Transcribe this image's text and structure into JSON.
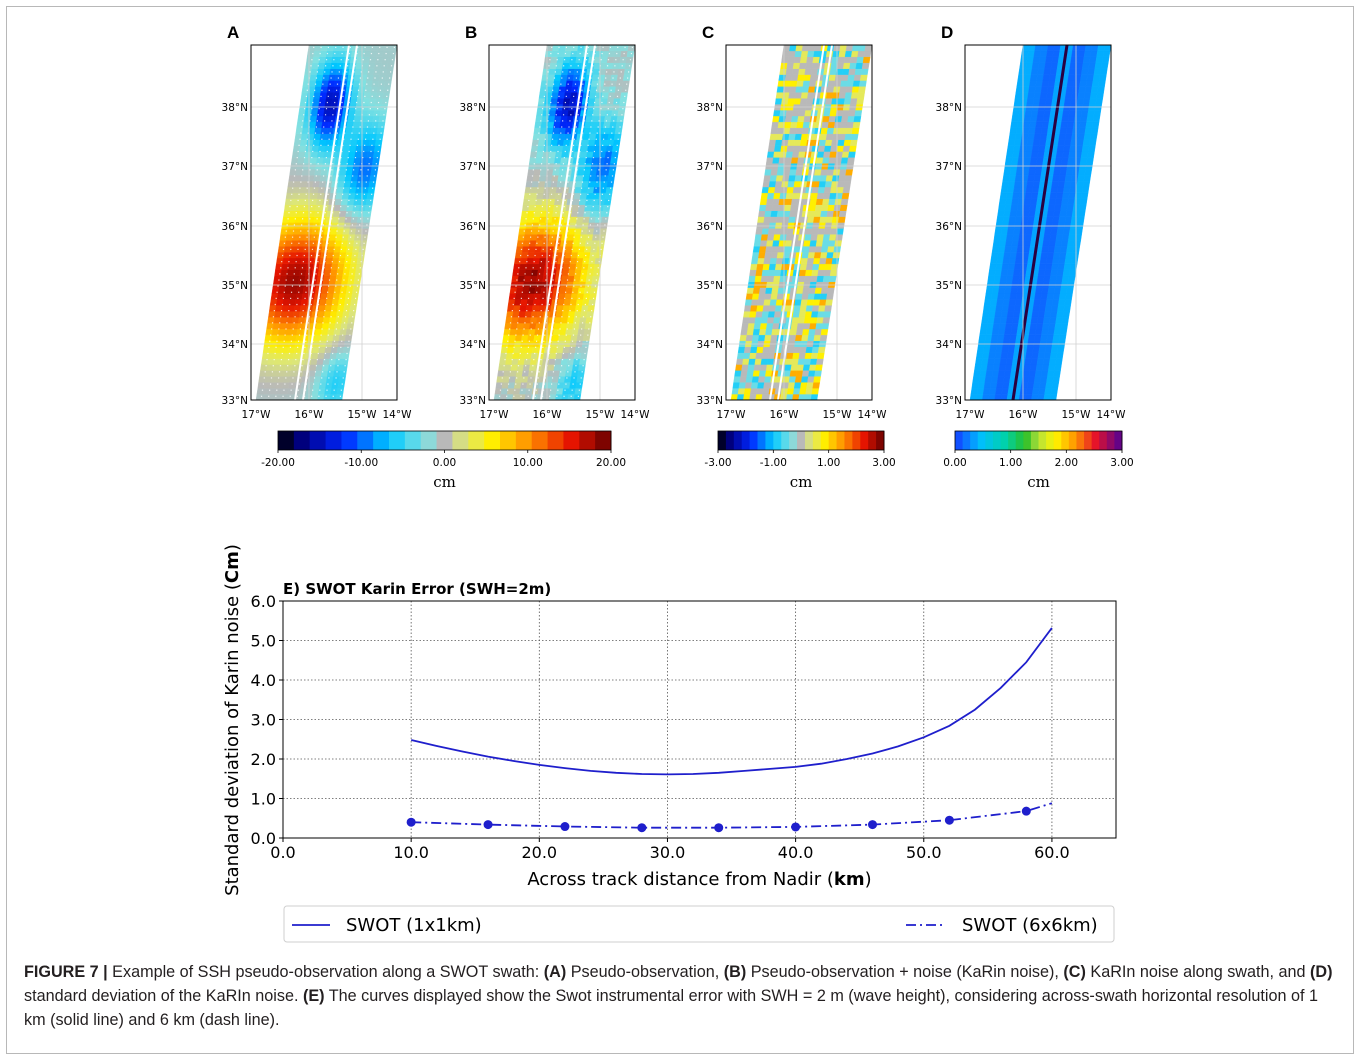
{
  "figure": {
    "panels": [
      {
        "letter": "A",
        "colorbar": {
          "ticks": [
            "-20.00",
            "-10.00",
            "0.00",
            "10.00",
            "20.00"
          ],
          "unit": "cm",
          "palette": "jet-with-gray-zero"
        }
      },
      {
        "letter": "B",
        "colorbar": {
          "ticks": [
            "-20.00",
            "-10.00",
            "0.00",
            "10.00",
            "20.00"
          ],
          "unit": "cm",
          "palette": "jet-with-gray-zero"
        }
      },
      {
        "letter": "C",
        "colorbar": {
          "ticks": [
            "-3.00",
            "-1.00",
            "1.00",
            "3.00"
          ],
          "unit": "cm",
          "palette": "jet-with-gray-zero"
        }
      },
      {
        "letter": "D",
        "colorbar": {
          "ticks": [
            "0.00",
            "1.00",
            "2.00",
            "3.00"
          ],
          "unit": "cm",
          "palette": "rainbow"
        }
      }
    ],
    "lat_ticks": [
      "38°N",
      "37°N",
      "36°N",
      "35°N",
      "34°N",
      "33°N"
    ],
    "lon_ticks": [
      "17°W",
      "16°W",
      "15°W",
      "14°W"
    ],
    "caption": {
      "label": "FIGURE 7 |",
      "parts": [
        {
          "t": " Example of SSH pseudo-observation along a SWOT swath: ",
          "b": false
        },
        {
          "t": "(A)",
          "b": true
        },
        {
          "t": " Pseudo-observation, ",
          "b": false
        },
        {
          "t": "(B)",
          "b": true
        },
        {
          "t": " Pseudo-observation + noise (KaRin noise), ",
          "b": false
        },
        {
          "t": "(C)",
          "b": true
        },
        {
          "t": " KaRIn noise along swath, and ",
          "b": false
        },
        {
          "t": "(D)",
          "b": true
        },
        {
          "t": " standard deviation of the KaRIn noise. ",
          "b": false
        },
        {
          "t": "(E)",
          "b": true
        },
        {
          "t": " The curves displayed show the Swot instrumental error with SWH = 2 m (wave height), considering across-swath horizontal resolution of 1 km (solid line) and 6 km (dash line).",
          "b": false
        }
      ]
    }
  },
  "chart_data": {
    "type": "line",
    "title": "E) SWOT  Karin Error (SWH=2m)",
    "xlabel_prefix": "Across track distance from Nadir (",
    "xlabel_bold": "km",
    "xlabel_suffix": ")",
    "ylabel_prefix": "Standard deviation of Karin noise (",
    "ylabel_bold": "Cm",
    "ylabel_suffix": ")",
    "xlim": [
      0,
      65
    ],
    "ylim": [
      0,
      6
    ],
    "xticks": [
      0,
      10,
      20,
      30,
      40,
      50,
      60
    ],
    "xtick_labels": [
      "0.0",
      "10.0",
      "20.0",
      "30.0",
      "40.0",
      "50.0",
      "60.0"
    ],
    "yticks": [
      0,
      1,
      2,
      3,
      4,
      5,
      6
    ],
    "ytick_labels": [
      "0.0",
      "1.0",
      "2.0",
      "3.0",
      "4.0",
      "5.0",
      "6.0"
    ],
    "grid": true,
    "legend_position": "bottom",
    "color": "#1f1fcc",
    "series": [
      {
        "name": "SWOT (1x1km)",
        "style": "solid",
        "markers": false,
        "x": [
          10,
          12,
          14,
          16,
          18,
          20,
          22,
          24,
          26,
          28,
          30,
          32,
          34,
          36,
          38,
          40,
          42,
          44,
          46,
          48,
          50,
          52,
          54,
          56,
          58,
          60
        ],
        "y": [
          2.48,
          2.33,
          2.19,
          2.06,
          1.95,
          1.85,
          1.77,
          1.7,
          1.65,
          1.62,
          1.61,
          1.62,
          1.65,
          1.7,
          1.75,
          1.8,
          1.88,
          2.0,
          2.14,
          2.32,
          2.55,
          2.84,
          3.25,
          3.8,
          4.45,
          5.32
        ]
      },
      {
        "name": "SWOT (6x6km)",
        "style": "dashdot",
        "markers": true,
        "x": [
          10,
          16,
          22,
          28,
          34,
          40,
          46,
          52,
          58,
          60
        ],
        "y": [
          0.4,
          0.34,
          0.29,
          0.26,
          0.26,
          0.28,
          0.34,
          0.45,
          0.68,
          0.88
        ]
      }
    ]
  }
}
